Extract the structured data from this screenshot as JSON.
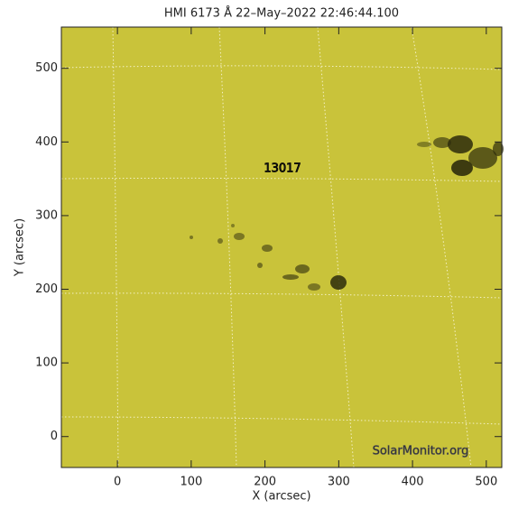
{
  "chart_data": {
    "type": "image",
    "title": "HMI 6173 Å 22–May–2022 22:46:44.100",
    "xlabel": "X (arcsec)",
    "ylabel": "Y (arcsec)",
    "xlim": [
      -76,
      521
    ],
    "ylim": [
      -42,
      556
    ],
    "xticks": [
      0,
      100,
      200,
      300,
      400,
      500
    ],
    "yticks": [
      0,
      100,
      200,
      300,
      400,
      500
    ],
    "annotations": [
      "13017",
      "SolarMonitor.org"
    ],
    "color": "#c9c33a"
  }
}
